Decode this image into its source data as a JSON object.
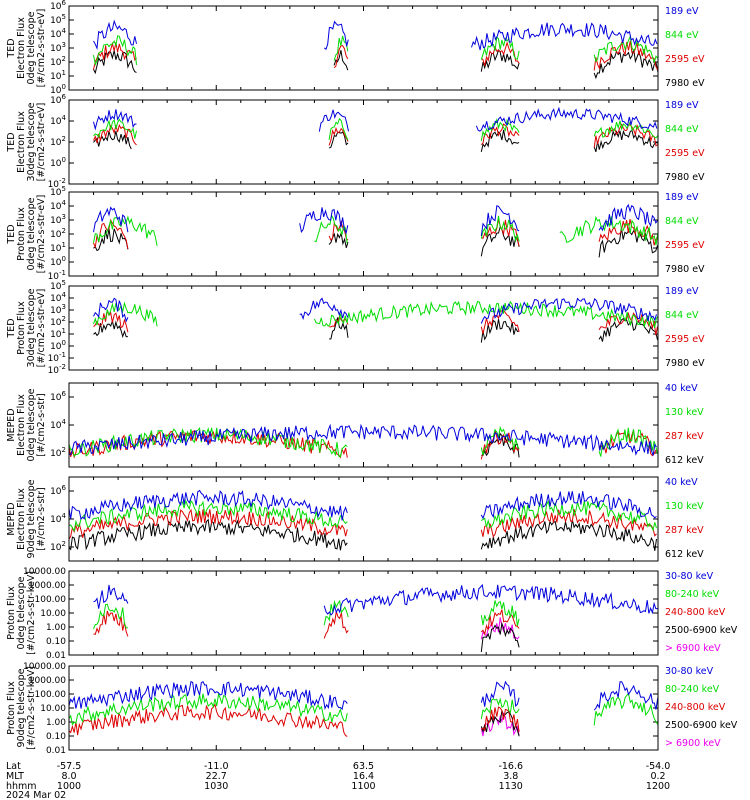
{
  "figure": {
    "date_label": "2024 Mar 02",
    "footer_row_labels": [
      "Lat",
      "MLT",
      "hhmm"
    ]
  },
  "chart_data": {
    "type": "line",
    "x_axis": {
      "unit": "hhmm",
      "range_minutes": [
        0,
        120
      ],
      "ticks": [
        {
          "minute": 0,
          "lat": "-57.5",
          "mlt": "8.0",
          "time": "1000"
        },
        {
          "minute": 30,
          "lat": "-11.0",
          "mlt": "22.7",
          "time": "1030"
        },
        {
          "minute": 60,
          "lat": "63.5",
          "mlt": "16.4",
          "time": "1100"
        },
        {
          "minute": 90,
          "lat": "-16.6",
          "mlt": "3.8",
          "time": "1130"
        },
        {
          "minute": 120,
          "lat": "-54.0",
          "mlt": "0.2",
          "time": "1200"
        }
      ]
    },
    "panels": [
      {
        "id": "ted-electron-0",
        "ylabel_lines": [
          "TED",
          "Electron Flux",
          "0deg telescope",
          "[#/cm2-s-str-eV]"
        ],
        "ylog": true,
        "ylim_exp": [
          0,
          6
        ],
        "tick_exps": [
          0,
          1,
          2,
          3,
          4,
          5,
          6
        ],
        "series": [
          {
            "name": "7980 eV",
            "color": "#000000",
            "level": 1.3,
            "segments": [
              [
                5,
                14
              ],
              [
                54,
                57
              ],
              [
                84,
                92
              ],
              [
                107,
                120
              ]
            ]
          },
          {
            "name": "2595 eV",
            "color": "#dd0000",
            "level": 1.8,
            "segments": [
              [
                5,
                14
              ],
              [
                54,
                57
              ],
              [
                84,
                92
              ],
              [
                107,
                120
              ]
            ]
          },
          {
            "name": "844 eV",
            "color": "#00dd00",
            "level": 2.2,
            "segments": [
              [
                5,
                14
              ],
              [
                54,
                57
              ],
              [
                84,
                92
              ],
              [
                107,
                120
              ]
            ]
          },
          {
            "name": "189 eV",
            "color": "#0000dd",
            "level": 3.2,
            "segments": [
              [
                5,
                14
              ],
              [
                52,
                57
              ],
              [
                82,
                120
              ]
            ]
          }
        ]
      },
      {
        "id": "ted-electron-30",
        "ylabel_lines": [
          "TED",
          "Electron Flux",
          "30deg telescope",
          "[#/cm2-s-str-eV]"
        ],
        "ylog": true,
        "ylim_exp": [
          -2,
          6
        ],
        "tick_exps": [
          -2,
          0,
          2,
          4,
          6
        ],
        "series": [
          {
            "name": "7980 eV",
            "color": "#000000",
            "level": 1.5,
            "segments": [
              [
                5,
                13
              ],
              [
                53,
                57
              ],
              [
                84,
                92
              ],
              [
                107,
                120
              ]
            ]
          },
          {
            "name": "2595 eV",
            "color": "#dd0000",
            "level": 2.0,
            "segments": [
              [
                5,
                14
              ],
              [
                53,
                57
              ],
              [
                84,
                92
              ],
              [
                107,
                120
              ]
            ]
          },
          {
            "name": "844 eV",
            "color": "#00dd00",
            "level": 2.5,
            "segments": [
              [
                5,
                14
              ],
              [
                53,
                57
              ],
              [
                84,
                92
              ],
              [
                107,
                120
              ]
            ]
          },
          {
            "name": "189 eV",
            "color": "#0000dd",
            "level": 3.5,
            "segments": [
              [
                5,
                14
              ],
              [
                51,
                57
              ],
              [
                83,
                120
              ]
            ]
          }
        ]
      },
      {
        "id": "ted-proton-0",
        "ylabel_lines": [
          "TED",
          "Proton Flux",
          "0deg telescope",
          "[#/cm2-s-str-eV]"
        ],
        "ylog": true,
        "ylim_exp": [
          -1,
          5
        ],
        "tick_exps": [
          -1,
          0,
          1,
          2,
          3,
          4,
          5
        ],
        "series": [
          {
            "name": "7980 eV",
            "color": "#000000",
            "level": 0.8,
            "segments": [
              [
                5,
                12
              ],
              [
                53,
                57
              ],
              [
                84,
                92
              ],
              [
                108,
                120
              ]
            ]
          },
          {
            "name": "2595 eV",
            "color": "#dd0000",
            "level": 1.4,
            "segments": [
              [
                5,
                12
              ],
              [
                53,
                57
              ],
              [
                84,
                92
              ],
              [
                108,
                120
              ]
            ]
          },
          {
            "name": "844 eV",
            "color": "#00dd00",
            "level": 1.6,
            "segments": [
              [
                5,
                18
              ],
              [
                50,
                57
              ],
              [
                84,
                92
              ],
              [
                100,
                120
              ]
            ]
          },
          {
            "name": "189 eV",
            "color": "#0000dd",
            "level": 2.4,
            "segments": [
              [
                5,
                12
              ],
              [
                47,
                57
              ],
              [
                84,
                92
              ],
              [
                108,
                120
              ]
            ]
          }
        ]
      },
      {
        "id": "ted-proton-30",
        "ylabel_lines": [
          "TED",
          "Proton Flux",
          "30deg telescope",
          "[#/cm2-s-str-eV]"
        ],
        "ylog": true,
        "ylim_exp": [
          -2,
          5
        ],
        "tick_exps": [
          -2,
          -1,
          0,
          1,
          2,
          3,
          4,
          5
        ],
        "series": [
          {
            "name": "7980 eV",
            "color": "#000000",
            "level": 0.7,
            "segments": [
              [
                5,
                12
              ],
              [
                53,
                57
              ],
              [
                84,
                92
              ],
              [
                108,
                120
              ]
            ]
          },
          {
            "name": "2595 eV",
            "color": "#dd0000",
            "level": 1.3,
            "segments": [
              [
                5,
                12
              ],
              [
                53,
                57
              ],
              [
                84,
                92
              ],
              [
                108,
                120
              ]
            ]
          },
          {
            "name": "844 eV",
            "color": "#00dd00",
            "level": 2.0,
            "segments": [
              [
                5,
                18
              ],
              [
                50,
                120
              ]
            ]
          },
          {
            "name": "189 eV",
            "color": "#0000dd",
            "level": 2.4,
            "segments": [
              [
                5,
                12
              ],
              [
                47,
                57
              ],
              [
                84,
                120
              ]
            ]
          }
        ]
      },
      {
        "id": "meped-electron-0",
        "ylabel_lines": [
          "MEPED",
          "Electron Flux",
          "0deg telescope",
          "[#/cm2-s-str]"
        ],
        "ylog": true,
        "ylim_exp": [
          1,
          7
        ],
        "tick_exps": [
          2,
          4,
          6
        ],
        "series": [
          {
            "name": "612 keV",
            "color": "#000000",
            "level": 1.8,
            "segments": [
              [
                84,
                92
              ]
            ]
          },
          {
            "name": "287 keV",
            "color": "#dd0000",
            "level": 2.0,
            "segments": [
              [
                0,
                57
              ],
              [
                84,
                92
              ],
              [
                108,
                120
              ]
            ]
          },
          {
            "name": "130 keV",
            "color": "#00dd00",
            "level": 2.1,
            "segments": [
              [
                0,
                57
              ],
              [
                84,
                92
              ],
              [
                108,
                120
              ]
            ]
          },
          {
            "name": "40 keV",
            "color": "#0000dd",
            "level": 2.3,
            "segments": [
              [
                0,
                120
              ]
            ]
          }
        ]
      },
      {
        "id": "meped-electron-90",
        "ylabel_lines": [
          "MEPED",
          "Electron Flux",
          "90deg telescope",
          "[#/cm2-s-str]"
        ],
        "ylog": true,
        "ylim_exp": [
          1,
          7
        ],
        "tick_exps": [
          2,
          4,
          6
        ],
        "series": [
          {
            "name": "612 keV",
            "color": "#000000",
            "level": 2.2,
            "segments": [
              [
                0,
                57
              ],
              [
                84,
                120
              ]
            ]
          },
          {
            "name": "287 keV",
            "color": "#dd0000",
            "level": 3.0,
            "segments": [
              [
                0,
                57
              ],
              [
                84,
                120
              ]
            ]
          },
          {
            "name": "130 keV",
            "color": "#00dd00",
            "level": 3.6,
            "segments": [
              [
                0,
                57
              ],
              [
                84,
                120
              ]
            ]
          },
          {
            "name": "40 keV",
            "color": "#0000dd",
            "level": 4.3,
            "segments": [
              [
                0,
                57
              ],
              [
                84,
                120
              ]
            ]
          }
        ]
      },
      {
        "id": "meped-proton-0",
        "ylabel_lines": [
          "Proton Flux",
          "0deg telescope",
          "[#/cm2-s-str-keV]"
        ],
        "ylog": true,
        "ylim_exp": [
          -2,
          4
        ],
        "tick_labels": [
          "0.01",
          "0.10",
          "1.00",
          "10.00",
          "100.00",
          "1000.00",
          "10000.00"
        ],
        "series": [
          {
            "name": "> 6900 keV",
            "color": "#ee00ee",
            "level": -1.0,
            "segments": [
              [
                84,
                92
              ]
            ]
          },
          {
            "name": "2500-6900 keV",
            "color": "#000000",
            "level": -1.3,
            "segments": [
              [
                84,
                92
              ]
            ]
          },
          {
            "name": "240-800 keV",
            "color": "#dd0000",
            "level": -0.4,
            "segments": [
              [
                5,
                12
              ],
              [
                52,
                57
              ],
              [
                84,
                92
              ]
            ]
          },
          {
            "name": "80-240 keV",
            "color": "#00dd00",
            "level": 0.3,
            "segments": [
              [
                5,
                12
              ],
              [
                52,
                57
              ],
              [
                84,
                92
              ]
            ]
          },
          {
            "name": "30-80 keV",
            "color": "#0000dd",
            "level": 1.3,
            "segments": [
              [
                5,
                12
              ],
              [
                52,
                120
              ]
            ]
          }
        ]
      },
      {
        "id": "meped-proton-90",
        "ylabel_lines": [
          "Proton Flux",
          "90deg telescope",
          "[#/cm2-s-str-keV]"
        ],
        "ylog": true,
        "ylim_exp": [
          -2,
          4
        ],
        "tick_labels": [
          "0.01",
          "0.10",
          "1.00",
          "10.00",
          "100.00",
          "1000.00",
          "10000.00"
        ],
        "series": [
          {
            "name": "> 6900 keV",
            "color": "#ee00ee",
            "level": -1.0,
            "segments": [
              [
                84,
                92
              ]
            ]
          },
          {
            "name": "2500-6900 keV",
            "color": "#000000",
            "level": -0.8,
            "segments": [
              [
                84,
                92
              ]
            ]
          },
          {
            "name": "240-800 keV",
            "color": "#dd0000",
            "level": -0.5,
            "segments": [
              [
                0,
                57
              ],
              [
                84,
                92
              ]
            ]
          },
          {
            "name": "80-240 keV",
            "color": "#00dd00",
            "level": 0.3,
            "segments": [
              [
                0,
                57
              ],
              [
                84,
                92
              ],
              [
                107,
                120
              ]
            ]
          },
          {
            "name": "30-80 keV",
            "color": "#0000dd",
            "level": 1.2,
            "segments": [
              [
                0,
                57
              ],
              [
                84,
                92
              ],
              [
                107,
                120
              ]
            ]
          }
        ]
      }
    ]
  }
}
